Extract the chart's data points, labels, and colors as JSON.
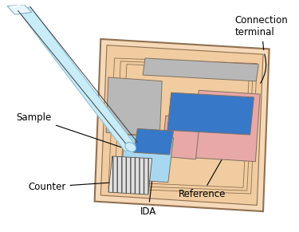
{
  "bg_color": "#ffffff",
  "chip_color": "#f5d9b8",
  "chip_border": "#907050",
  "chip_inner_color": "#f0cca0",
  "gray_electrode": "#b8b8b8",
  "pink_electrode": "#e8a8a8",
  "blue_electrode": "#3878c8",
  "light_blue_electrode": "#a8d8f0",
  "outline_color": "#807060",
  "needle_body": "#c8ecf8",
  "needle_edge": "#90c0d8",
  "hatch_color": "#505050",
  "annotation_color": "#000000",
  "label_fontsize": 8.5,
  "labels": {
    "connection_terminal": "Connection\nterminal",
    "sample": "Sample",
    "counter": "Counter",
    "ida": "IDA",
    "reference": "Reference"
  }
}
